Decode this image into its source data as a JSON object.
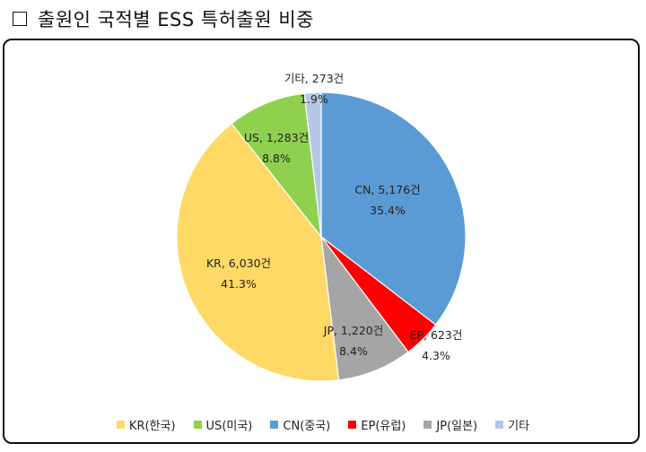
{
  "title": "출원인 국적별 ESS 특허출원 비중",
  "chart_data": {
    "type": "pie",
    "start": "top, clockwise",
    "slices": [
      {
        "label": "CN, 5,176건",
        "percent_label": "35.4%",
        "legend": "CN(중국)",
        "value": 5176,
        "percent": 35.4,
        "color": "#5b9bd5"
      },
      {
        "label": "EP, 623건",
        "percent_label": "4.3%",
        "legend": "EP(유럽)",
        "value": 623,
        "percent": 4.3,
        "color": "#ff0000"
      },
      {
        "label": "JP, 1,220건",
        "percent_label": "8.4%",
        "legend": "JP(일본)",
        "value": 1220,
        "percent": 8.4,
        "color": "#a5a5a5"
      },
      {
        "label": "KR, 6,030건",
        "percent_label": "41.3%",
        "legend": "KR(한국)",
        "value": 6030,
        "percent": 41.3,
        "color": "#ffd966"
      },
      {
        "label": "US, 1,283건",
        "percent_label": "8.8%",
        "legend": "US(미국)",
        "value": 1283,
        "percent": 8.8,
        "color": "#8fd14f"
      },
      {
        "label": "기타, 273건",
        "percent_label": "1.9%",
        "legend": "기타",
        "value": 273,
        "percent": 1.9,
        "color": "#b4c7e7"
      }
    ],
    "legend_order": [
      "KR(한국)",
      "US(미국)",
      "CN(중국)",
      "EP(유럽)",
      "JP(일본)",
      "기타"
    ],
    "legend_position": "bottom"
  }
}
